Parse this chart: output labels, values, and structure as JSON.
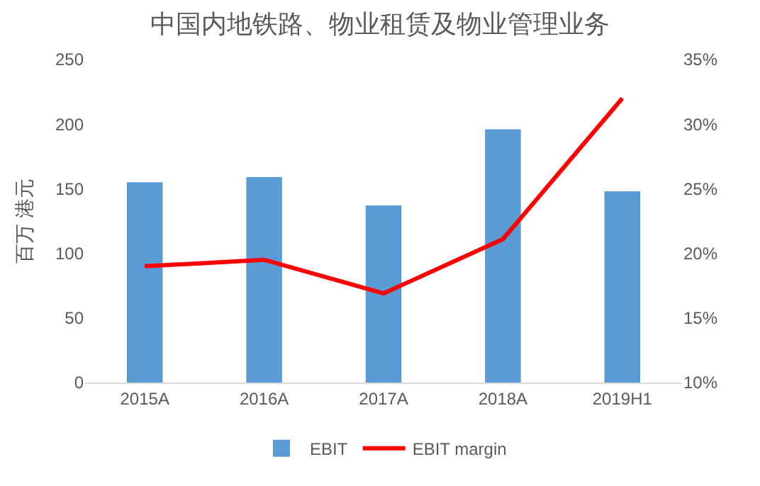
{
  "chart_data": {
    "type": "bar",
    "title": "中国内地铁路、物业租赁及物业管理业务",
    "ylabel": "百万 港元",
    "categories": [
      "2015A",
      "2016A",
      "2017A",
      "2018A",
      "2019H1"
    ],
    "series": [
      {
        "name": "EBIT",
        "color": "#5b9bd5",
        "values": [
          155,
          159,
          137,
          196,
          148
        ]
      },
      {
        "name": "EBIT margin",
        "type": "line",
        "axis": "y2",
        "color": "#ff0000",
        "values": [
          19.0,
          19.5,
          16.9,
          21.1,
          32.0
        ]
      }
    ],
    "ylim": [
      0,
      250
    ],
    "yticks": [
      0,
      50,
      100,
      150,
      200,
      250
    ],
    "y2lim": [
      10,
      35
    ],
    "y2ticks": [
      {
        "value": 10,
        "label": "10%"
      },
      {
        "value": 15,
        "label": "15%"
      },
      {
        "value": 20,
        "label": "20%"
      },
      {
        "value": 25,
        "label": "25%"
      },
      {
        "value": 30,
        "label": "30%"
      },
      {
        "value": 35,
        "label": "35%"
      }
    ],
    "grid": false,
    "legend": "bottom",
    "marker": "none"
  }
}
